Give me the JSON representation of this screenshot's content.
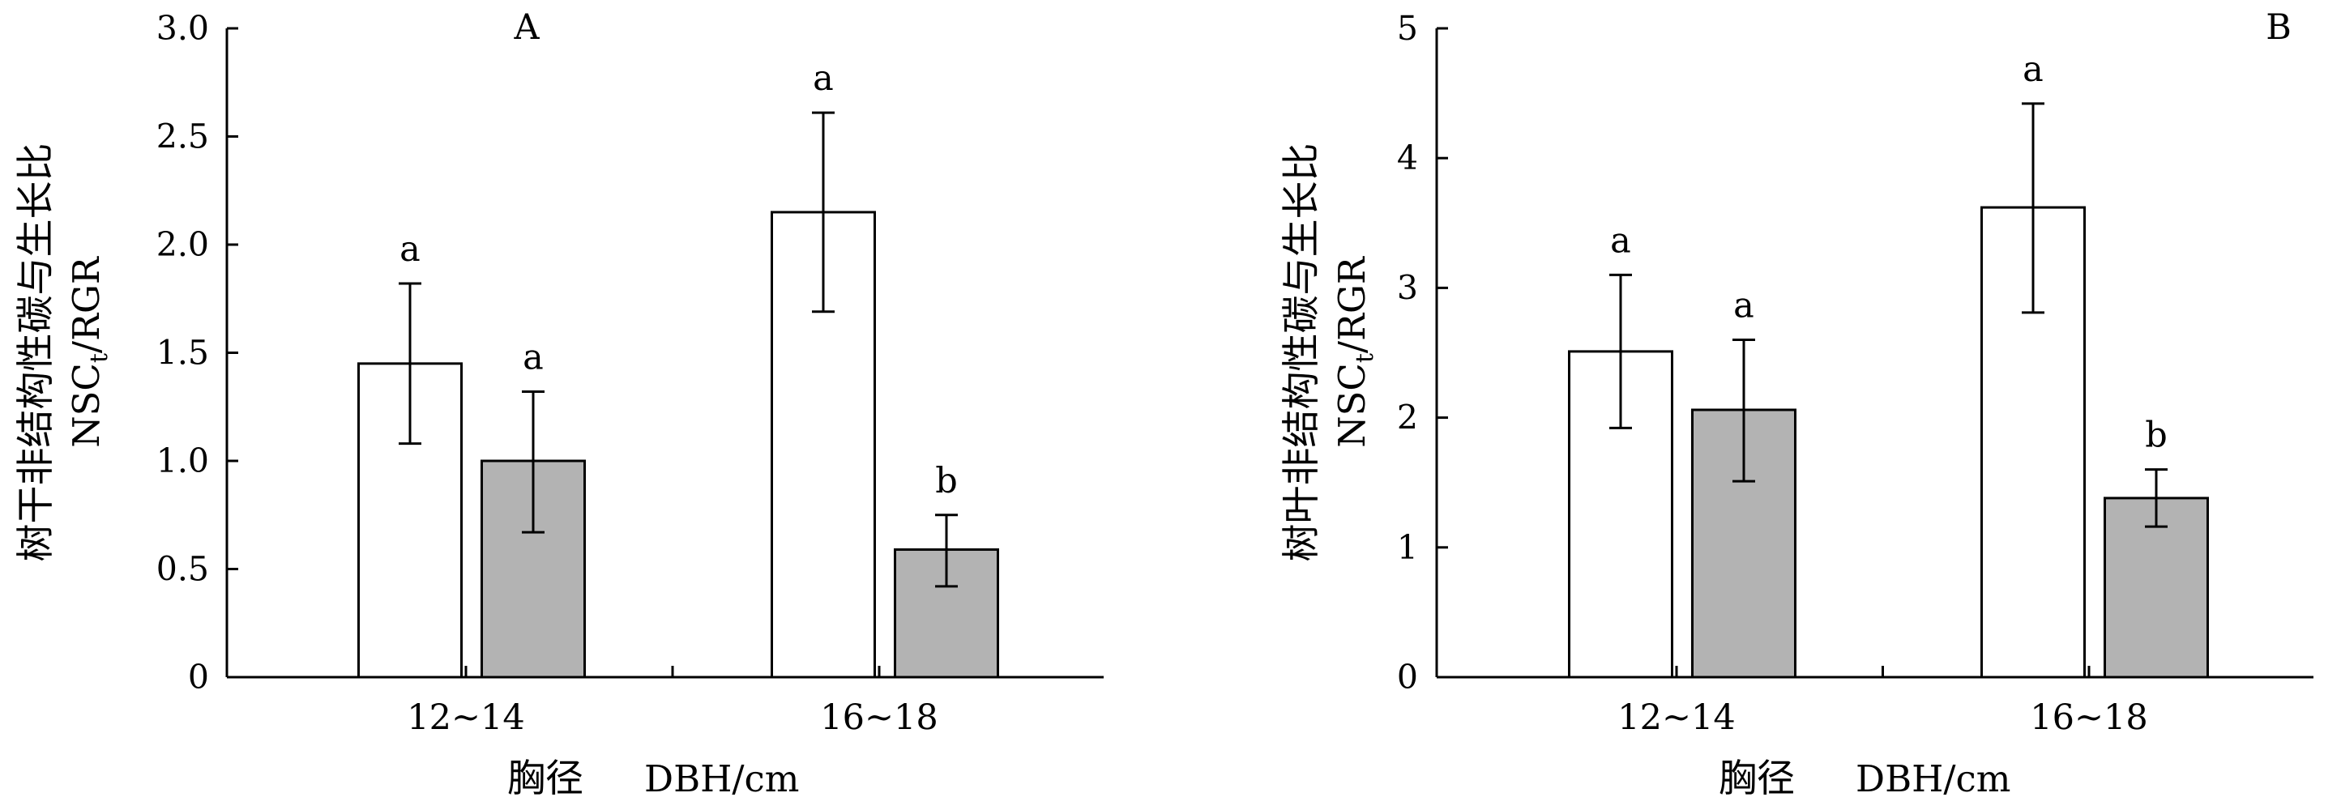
{
  "chart_data": [
    {
      "type": "bar",
      "panel_label": "A",
      "ylabel_cn": "树干非结构性碳与生长比",
      "ylabel_en": "NSCt/RGR",
      "ylabel_en_main": "NSC",
      "ylabel_en_sub": "t",
      "ylabel_en_tail": "/RGR",
      "xlabel_cn": "胸径",
      "xlabel_en": "DBH/cm",
      "categories": [
        "12~14",
        "16~18"
      ],
      "ylim": [
        0,
        3.0
      ],
      "yticks": [
        0,
        0.5,
        1.0,
        1.5,
        2.0,
        2.5,
        3.0
      ],
      "ytick_labels": [
        "0",
        "0.5",
        "1.0",
        "1.5",
        "2.0",
        "2.5",
        "3.0"
      ],
      "grid": false,
      "series": [
        {
          "fill": "#ffffff",
          "values": [
            1.45,
            2.15
          ],
          "err_low": [
            1.08,
            1.69
          ],
          "err_high": [
            1.82,
            2.61
          ],
          "letters": [
            "a",
            "a"
          ]
        },
        {
          "fill": "#b3b3b3",
          "values": [
            1.0,
            0.59
          ],
          "err_low": [
            0.67,
            0.42
          ],
          "err_high": [
            1.32,
            0.75
          ],
          "letters": [
            "a",
            "b"
          ]
        }
      ]
    },
    {
      "type": "bar",
      "panel_label": "B",
      "ylabel_cn": "树叶非结构性碳与生长比",
      "ylabel_en": "NSCt/RGR",
      "ylabel_en_main": "NSC",
      "ylabel_en_sub": "t",
      "ylabel_en_tail": "/RGR",
      "xlabel_cn": "胸径",
      "xlabel_en": "DBH/cm",
      "categories": [
        "12~14",
        "16~18"
      ],
      "ylim": [
        0,
        5
      ],
      "yticks": [
        0,
        1,
        2,
        3,
        4,
        5
      ],
      "ytick_labels": [
        "0",
        "1",
        "2",
        "3",
        "4",
        "5"
      ],
      "grid": false,
      "series": [
        {
          "fill": "#ffffff",
          "values": [
            2.51,
            3.62
          ],
          "err_low": [
            1.92,
            2.81
          ],
          "err_high": [
            3.1,
            4.42
          ],
          "letters": [
            "a",
            "a"
          ]
        },
        {
          "fill": "#b3b3b3",
          "values": [
            2.06,
            1.38
          ],
          "err_low": [
            1.51,
            1.16
          ],
          "err_high": [
            2.6,
            1.6
          ],
          "letters": [
            "a",
            "b"
          ]
        }
      ]
    }
  ]
}
